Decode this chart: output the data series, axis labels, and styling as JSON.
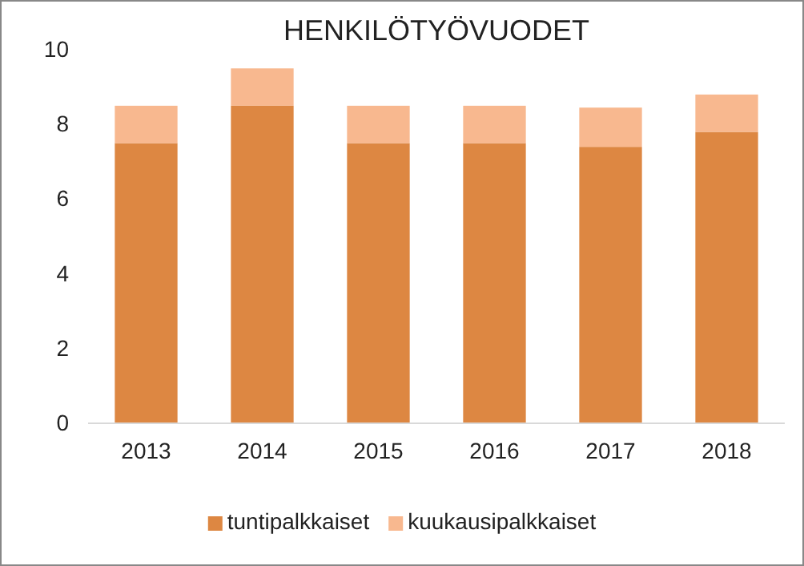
{
  "chart_data": {
    "type": "bar",
    "title": "HENKILÖTYÖVUODET",
    "categories": [
      "2013",
      "2014",
      "2015",
      "2016",
      "2017",
      "2018"
    ],
    "stacked": true,
    "series": [
      {
        "name": "tuntipalkkaiset",
        "color": "#dd8742",
        "values": [
          7.5,
          8.5,
          7.5,
          7.5,
          7.4,
          7.8
        ]
      },
      {
        "name": "kuukausipalkkaiset",
        "color": "#f8b88f",
        "values": [
          1.0,
          1.0,
          1.0,
          1.0,
          1.05,
          1.0
        ]
      }
    ],
    "ylim": [
      0,
      10
    ],
    "yticks": [
      0,
      2,
      4,
      6,
      8,
      10
    ],
    "grid": false,
    "legend": "bottom"
  }
}
